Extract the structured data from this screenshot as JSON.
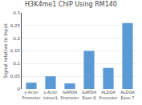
{
  "chart_data": {
    "type": "bar",
    "title": "H3K4me1 ChIP Using RM140",
    "ylabel": "Signal relative to Input",
    "categories": [
      "γ-Actin\nPromoter",
      "γ-Actin\nIntron1",
      "GAPDH\nPromoter",
      "GAPDH\nExon 8",
      "ALDOA\nPromoter",
      "ALDOA\nExon 7"
    ],
    "values": [
      0.025,
      0.05,
      0.022,
      0.15,
      0.083,
      0.26
    ],
    "color": "#5b9bd5",
    "ylim": [
      0,
      0.3
    ],
    "yticks": [
      0,
      0.05,
      0.1,
      0.15,
      0.2,
      0.25,
      0.3
    ],
    "grid": true
  }
}
